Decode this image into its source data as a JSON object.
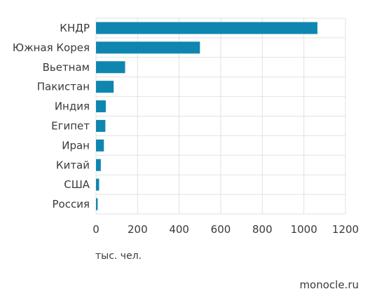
{
  "chart_data": {
    "type": "bar",
    "orientation": "horizontal",
    "categories": [
      "КНДР",
      "Южная Корея",
      "Вьетнам",
      "Пакистан",
      "Индия",
      "Египет",
      "Иран",
      "Китай",
      "США",
      "Россия"
    ],
    "values": [
      1065,
      500,
      140,
      85,
      47,
      45,
      38,
      23,
      15,
      8
    ],
    "xlim": [
      0,
      1200
    ],
    "xticks": [
      "0",
      "200",
      "400",
      "600",
      "800",
      "1000",
      "1200"
    ],
    "xlabel": "тыс. чел.",
    "grid": "vertical",
    "bar_color": "#0f86b0",
    "grid_color": "#e2e2e2"
  },
  "source": "monocle.ru"
}
